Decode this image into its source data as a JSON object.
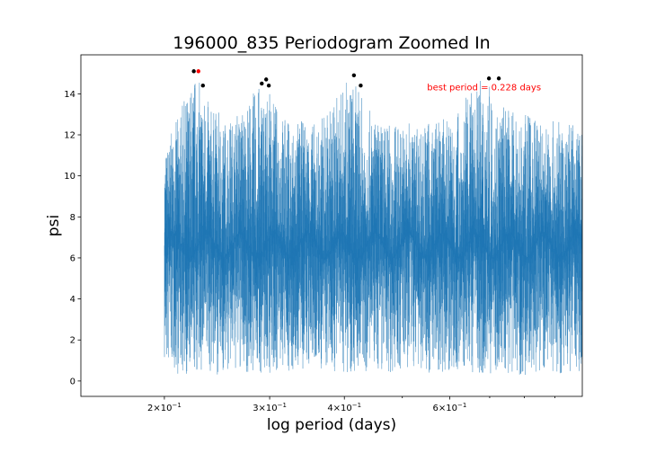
{
  "chart_data": {
    "type": "line",
    "title": "196000_835 Periodogram Zoomed In",
    "xlabel": "log period (days)",
    "ylabel": "psi",
    "xscale": "log",
    "xlim": [
      0.145,
      1.0
    ],
    "ylim": [
      -0.75,
      15.9
    ],
    "grid": false,
    "x_major_ticks": [
      {
        "value": 0.2,
        "base": "2×10",
        "exp": "−1"
      },
      {
        "value": 0.3,
        "base": "3×10",
        "exp": "−1"
      },
      {
        "value": 0.4,
        "base": "4×10",
        "exp": "−1"
      },
      {
        "value": 0.6,
        "base": "6×10",
        "exp": "−1"
      }
    ],
    "x_minor_ticks": [
      0.5,
      0.7,
      0.8,
      0.9
    ],
    "y_ticks": [
      0,
      2,
      4,
      6,
      8,
      10,
      12,
      14
    ],
    "series_color": "#1f77b4",
    "data_range": [
      0.2,
      1.0
    ],
    "envelope": [
      {
        "x": 0.2,
        "lo": 0.4,
        "hi": 11.2
      },
      {
        "x": 0.21,
        "lo": 0.3,
        "hi": 12.8
      },
      {
        "x": 0.225,
        "lo": 0.2,
        "hi": 15.1
      },
      {
        "x": 0.24,
        "lo": 0.3,
        "hi": 13.3
      },
      {
        "x": 0.26,
        "lo": 0.3,
        "hi": 12.8
      },
      {
        "x": 0.29,
        "lo": 0.3,
        "hi": 14.6
      },
      {
        "x": 0.32,
        "lo": 0.4,
        "hi": 12.8
      },
      {
        "x": 0.36,
        "lo": 0.4,
        "hi": 12.6
      },
      {
        "x": 0.41,
        "lo": 0.4,
        "hi": 14.9
      },
      {
        "x": 0.45,
        "lo": 0.4,
        "hi": 12.7
      },
      {
        "x": 0.52,
        "lo": 0.4,
        "hi": 12.6
      },
      {
        "x": 0.6,
        "lo": 0.4,
        "hi": 12.8
      },
      {
        "x": 0.68,
        "lo": 0.4,
        "hi": 14.8
      },
      {
        "x": 0.75,
        "lo": 0.3,
        "hi": 13.3
      },
      {
        "x": 0.85,
        "lo": 0.3,
        "hi": 12.8
      },
      {
        "x": 1.0,
        "lo": 0.3,
        "hi": 12.5
      }
    ],
    "peaks": [
      {
        "x": 0.224,
        "y": 15.1,
        "color": "#000000"
      },
      {
        "x": 0.228,
        "y": 15.1,
        "color": "#ff0000"
      },
      {
        "x": 0.232,
        "y": 14.4,
        "color": "#000000"
      },
      {
        "x": 0.291,
        "y": 14.5,
        "color": "#000000"
      },
      {
        "x": 0.296,
        "y": 14.7,
        "color": "#000000"
      },
      {
        "x": 0.299,
        "y": 14.4,
        "color": "#000000"
      },
      {
        "x": 0.415,
        "y": 14.9,
        "color": "#000000"
      },
      {
        "x": 0.426,
        "y": 14.4,
        "color": "#000000"
      },
      {
        "x": 0.698,
        "y": 14.75,
        "color": "#000000"
      },
      {
        "x": 0.725,
        "y": 14.75,
        "color": "#000000"
      }
    ],
    "annotation": {
      "text": "best period = 0.228 days",
      "x": 0.55,
      "y": 14.3,
      "color": "#ff0000"
    }
  }
}
